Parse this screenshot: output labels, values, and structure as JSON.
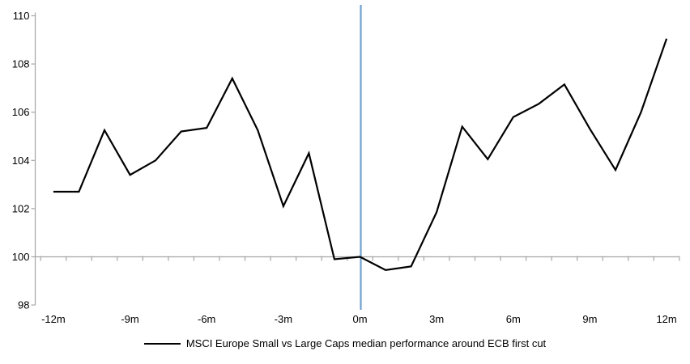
{
  "chart_data": {
    "type": "line",
    "title": "",
    "xlabel": "",
    "ylabel": "",
    "x": [
      -12,
      -11,
      -10,
      -9,
      -8,
      -7,
      -6,
      -5,
      -4,
      -3,
      -2,
      -1,
      0,
      1,
      2,
      3,
      4,
      5,
      6,
      7,
      8,
      9,
      10,
      11,
      12
    ],
    "series": [
      {
        "name": "MSCI Europe Small vs Large Caps median performance around ECB first cut",
        "values": [
          102.7,
          102.7,
          105.25,
          103.4,
          104.0,
          105.2,
          105.35,
          107.4,
          105.25,
          102.1,
          104.3,
          99.9,
          100.0,
          99.45,
          99.6,
          101.85,
          105.4,
          104.05,
          105.8,
          106.35,
          107.15,
          105.3,
          103.6,
          106.0,
          109.05
        ]
      }
    ],
    "ylim": [
      98,
      110
    ],
    "yticks": [
      98,
      100,
      102,
      104,
      106,
      108,
      110
    ],
    "xtick_values": [
      -12,
      -9,
      -6,
      -3,
      0,
      3,
      6,
      9,
      12
    ],
    "xtick_labels": [
      "-12m",
      "-9m",
      "-6m",
      "-3m",
      "0m",
      "3m",
      "6m",
      "9m",
      "12m"
    ],
    "baseline_value": 100,
    "event_line_x": 0,
    "grid": "baseline-only",
    "legend_position": "bottom-center",
    "colors": {
      "series": "#000000",
      "event_line": "#6FA0CF",
      "axis": "#A6A6A6",
      "tick_label": "#000000"
    }
  },
  "legend": {
    "label": "MSCI Europe Small vs Large Caps median performance around ECB first cut"
  }
}
